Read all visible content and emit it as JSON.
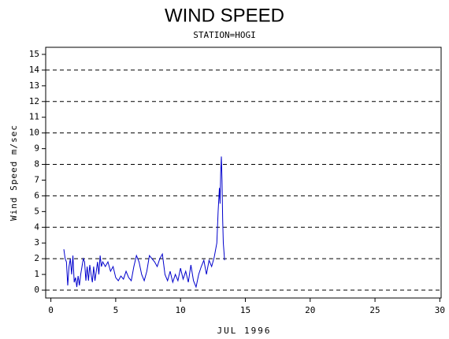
{
  "chart_data": {
    "type": "line",
    "title": "WIND SPEED",
    "subtitle": "STATION=HOGI",
    "x_label": "JUL 1996",
    "y_label": "Wind Speed m/sec",
    "x": [
      1.0,
      1.1,
      1.2,
      1.3,
      1.4,
      1.5,
      1.6,
      1.7,
      1.8,
      1.9,
      2.0,
      2.1,
      2.2,
      2.3,
      2.4,
      2.5,
      2.6,
      2.7,
      2.8,
      2.9,
      3.0,
      3.1,
      3.2,
      3.3,
      3.4,
      3.5,
      3.6,
      3.7,
      3.8,
      3.9,
      4.0,
      4.2,
      4.4,
      4.6,
      4.8,
      5.0,
      5.2,
      5.4,
      5.6,
      5.8,
      6.0,
      6.2,
      6.4,
      6.6,
      6.8,
      7.0,
      7.2,
      7.4,
      7.6,
      7.8,
      8.0,
      8.2,
      8.4,
      8.6,
      8.8,
      9.0,
      9.2,
      9.4,
      9.6,
      9.8,
      10.0,
      10.2,
      10.4,
      10.6,
      10.8,
      11.0,
      11.2,
      11.4,
      11.6,
      11.8,
      12.0,
      12.2,
      12.4,
      12.6,
      12.8,
      12.9,
      13.0,
      13.05,
      13.1,
      13.15,
      13.2,
      13.25,
      13.3,
      13.4
    ],
    "series": [
      {
        "name": "Wind Speed",
        "color": "#0000cc",
        "values": [
          2.6,
          2.0,
          1.8,
          0.3,
          1.5,
          2.0,
          1.0,
          2.2,
          0.5,
          0.8,
          0.2,
          0.9,
          0.3,
          1.0,
          1.5,
          2.0,
          1.8,
          0.6,
          1.5,
          0.6,
          1.6,
          1.0,
          0.5,
          1.5,
          0.6,
          1.2,
          1.8,
          1.0,
          2.2,
          1.5,
          1.8,
          1.5,
          1.8,
          1.2,
          1.5,
          0.8,
          0.6,
          0.9,
          0.7,
          1.2,
          0.8,
          0.6,
          1.5,
          2.2,
          1.8,
          1.0,
          0.6,
          1.2,
          2.2,
          2.0,
          1.8,
          1.5,
          2.0,
          2.3,
          1.0,
          0.6,
          1.2,
          0.5,
          1.0,
          0.6,
          1.4,
          0.7,
          1.2,
          0.5,
          1.6,
          0.6,
          0.2,
          1.0,
          1.5,
          1.9,
          1.0,
          1.9,
          1.5,
          2.1,
          3.0,
          5.0,
          6.5,
          5.5,
          7.5,
          8.5,
          7.0,
          4.5,
          3.0,
          1.9
        ]
      }
    ],
    "xlim": [
      -0.4,
      30.1
    ],
    "ylim": [
      -0.5,
      15.45
    ],
    "xticks": [
      0,
      5,
      10,
      15,
      20,
      25,
      30
    ],
    "yticks": [
      0,
      1,
      2,
      3,
      4,
      5,
      6,
      7,
      8,
      9,
      10,
      11,
      12,
      13,
      14,
      15
    ],
    "grid_lines": [
      0,
      2,
      4,
      6,
      8,
      10,
      12,
      14
    ]
  }
}
